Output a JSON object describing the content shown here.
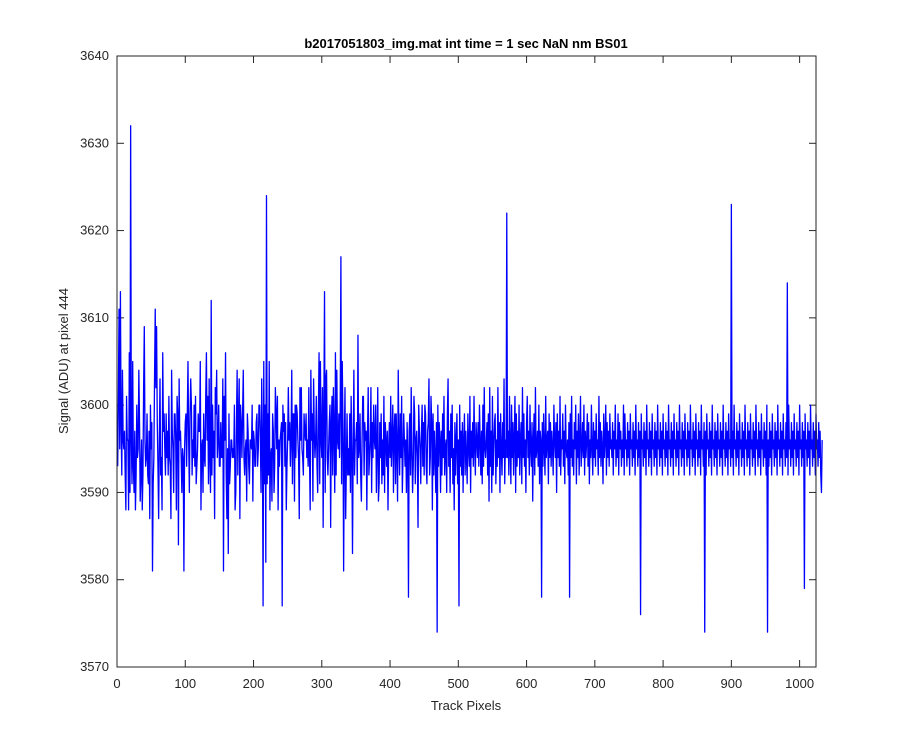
{
  "chart_data": {
    "type": "line",
    "title": "b2017051803_img.mat int time = 1 sec  NaN nm BS01",
    "xlabel": "Track Pixels",
    "ylabel": "Signal (ADU) at pixel 444",
    "xlim": [
      0,
      1024
    ],
    "ylim": [
      3570,
      3640
    ],
    "xticks": [
      0,
      100,
      200,
      300,
      400,
      500,
      600,
      700,
      800,
      900,
      1000
    ],
    "yticks": [
      3570,
      3580,
      3590,
      3600,
      3610,
      3620,
      3630,
      3640
    ],
    "grid": false,
    "box": true,
    "series": [
      {
        "color": "#0000ff",
        "x_start": 1,
        "x_step": 1,
        "values": [
          3593,
          3601,
          3611,
          3595,
          3613,
          3598,
          3592,
          3604,
          3596,
          3595,
          3597,
          3592,
          3588,
          3601,
          3596,
          3596,
          3588,
          3606,
          3590,
          3632,
          3596,
          3591,
          3605,
          3593,
          3590,
          3597,
          3588,
          3592,
          3600,
          3594,
          3595,
          3604,
          3598,
          3589,
          3592,
          3596,
          3588,
          3592,
          3602,
          3609,
          3596,
          3593,
          3594,
          3599,
          3592,
          3591,
          3597,
          3587,
          3600,
          3595,
          3598,
          3581,
          3591,
          3594,
          3603,
          3611,
          3602,
          3609,
          3598,
          3593,
          3587,
          3596,
          3603,
          3592,
          3594,
          3588,
          3606,
          3597,
          3599,
          3595,
          3592,
          3599,
          3594,
          3597,
          3592,
          3601,
          3594,
          3593,
          3587,
          3604,
          3597,
          3595,
          3590,
          3599,
          3599,
          3596,
          3588,
          3601,
          3599,
          3584,
          3603,
          3596,
          3597,
          3594,
          3590,
          3595,
          3594,
          3581,
          3595,
          3598,
          3599,
          3593,
          3599,
          3605,
          3596,
          3590,
          3599,
          3603,
          3600,
          3592,
          3596,
          3594,
          3600,
          3593,
          3601,
          3591,
          3593,
          3595,
          3599,
          3597,
          3597,
          3605,
          3588,
          3595,
          3596,
          3590,
          3599,
          3594,
          3593,
          3601,
          3606,
          3596,
          3601,
          3591,
          3603,
          3594,
          3590,
          3612,
          3592,
          3600,
          3594,
          3597,
          3587,
          3602,
          3599,
          3604,
          3594,
          3596,
          3600,
          3593,
          3593,
          3598,
          3594,
          3594,
          3603,
          3581,
          3601,
          3596,
          3606,
          3592,
          3587,
          3595,
          3583,
          3599,
          3591,
          3593,
          3596,
          3596,
          3594,
          3595,
          3594,
          3600,
          3588,
          3590,
          3598,
          3604,
          3592,
          3599,
          3603,
          3587,
          3600,
          3598,
          3594,
          3599,
          3604,
          3594,
          3592,
          3595,
          3596,
          3589,
          3599,
          3597,
          3593,
          3591,
          3596,
          3596,
          3595,
          3600,
          3589,
          3597,
          3596,
          3593,
          3593,
          3598,
          3599,
          3593,
          3595,
          3600,
          3600,
          3596,
          3590,
          3603,
          3596,
          3577,
          3605,
          3591,
          3600,
          3582,
          3624,
          3591,
          3599,
          3592,
          3605,
          3588,
          3594,
          3595,
          3589,
          3599,
          3597,
          3590,
          3593,
          3602,
          3599,
          3595,
          3601,
          3588,
          3596,
          3593,
          3596,
          3597,
          3598,
          3577,
          3600,
          3597,
          3599,
          3593,
          3598,
          3588,
          3593,
          3596,
          3602,
          3596,
          3598,
          3593,
          3596,
          3604,
          3591,
          3599,
          3599,
          3589,
          3600,
          3594,
          3600,
          3599,
          3596,
          3594,
          3587,
          3602,
          3596,
          3602,
          3595,
          3594,
          3592,
          3599,
          3597,
          3596,
          3599,
          3594,
          3596,
          3593,
          3602,
          3594,
          3588,
          3604,
          3596,
          3599,
          3589,
          3603,
          3597,
          3594,
          3596,
          3601,
          3593,
          3590,
          3599,
          3606,
          3591,
          3605,
          3596,
          3594,
          3602,
          3586,
          3599,
          3613,
          3590,
          3603,
          3604,
          3594,
          3592,
          3595,
          3598,
          3600,
          3586,
          3598,
          3601,
          3592,
          3602,
          3597,
          3590,
          3606,
          3592,
          3604,
          3596,
          3595,
          3599,
          3594,
          3600,
          3617,
          3591,
          3605,
          3598,
          3581,
          3595,
          3602,
          3587,
          3593,
          3599,
          3592,
          3595,
          3592,
          3599,
          3590,
          3601,
          3595,
          3583,
          3595,
          3604,
          3592,
          3596,
          3596,
          3598,
          3591,
          3608,
          3594,
          3595,
          3599,
          3592,
          3589,
          3596,
          3601,
          3601,
          3592,
          3598,
          3596,
          3597,
          3588,
          3597,
          3602,
          3592,
          3594,
          3596,
          3602,
          3590,
          3598,
          3594,
          3600,
          3596,
          3595,
          3600,
          3590,
          3595,
          3602,
          3589,
          3591,
          3598,
          3594,
          3599,
          3591,
          3596,
          3592,
          3601,
          3590,
          3598,
          3596,
          3593,
          3597,
          3588,
          3595,
          3598,
          3594,
          3601,
          3593,
          3596,
          3600,
          3590,
          3597,
          3599,
          3591,
          3599,
          3595,
          3589,
          3604,
          3596,
          3592,
          3599,
          3594,
          3601,
          3590,
          3594,
          3599,
          3596,
          3593,
          3596,
          3590,
          3598,
          3594,
          3578,
          3597,
          3599,
          3592,
          3602,
          3595,
          3590,
          3593,
          3601,
          3599,
          3591,
          3596,
          3597,
          3594,
          3586,
          3600,
          3597,
          3595,
          3591,
          3597,
          3600,
          3593,
          3598,
          3592,
          3600,
          3599,
          3593,
          3591,
          3597,
          3598,
          3603,
          3592,
          3594,
          3601,
          3598,
          3588,
          3599,
          3592,
          3597,
          3594,
          3590,
          3598,
          3574,
          3600,
          3593,
          3598,
          3596,
          3590,
          3597,
          3592,
          3599,
          3594,
          3601,
          3592,
          3595,
          3596,
          3590,
          3599,
          3603,
          3593,
          3597,
          3590,
          3599,
          3594,
          3600,
          3591,
          3595,
          3588,
          3598,
          3592,
          3596,
          3599,
          3591,
          3596,
          3577,
          3600,
          3593,
          3597,
          3592,
          3598,
          3590,
          3596,
          3599,
          3592,
          3597,
          3594,
          3591,
          3599,
          3595,
          3593,
          3601,
          3590,
          3597,
          3594,
          3598,
          3593,
          3601,
          3595,
          3592,
          3598,
          3596,
          3594,
          3598,
          3593,
          3600,
          3596,
          3592,
          3597,
          3591,
          3600,
          3593,
          3602,
          3595,
          3594,
          3596,
          3598,
          3592,
          3599,
          3589,
          3602,
          3593,
          3597,
          3590,
          3601,
          3592,
          3595,
          3598,
          3599,
          3591,
          3596,
          3593,
          3602,
          3594,
          3598,
          3590,
          3599,
          3595,
          3592,
          3598,
          3594,
          3603,
          3591,
          3596,
          3594,
          3622,
          3594,
          3597,
          3592,
          3601,
          3595,
          3591,
          3600,
          3594,
          3598,
          3592,
          3596,
          3601,
          3590,
          3599,
          3593,
          3597,
          3594,
          3600,
          3592,
          3596,
          3598,
          3591,
          3602,
          3594,
          3599,
          3593,
          3596,
          3590,
          3598,
          3601,
          3594,
          3597,
          3592,
          3600,
          3595,
          3593,
          3598,
          3589,
          3596,
          3599,
          3592,
          3602,
          3594,
          3595,
          3597,
          3593,
          3600,
          3591,
          3597,
          3596,
          3578,
          3598,
          3593,
          3599,
          3595,
          3592,
          3601,
          3594,
          3596,
          3597,
          3591,
          3599,
          3594,
          3598,
          3593,
          3597,
          3595,
          3592,
          3600,
          3596,
          3594,
          3598,
          3590,
          3599,
          3594,
          3597,
          3593,
          3601,
          3592,
          3596,
          3595,
          3599,
          3593,
          3597,
          3591,
          3600,
          3595,
          3594,
          3596,
          3592,
          3598,
          3578,
          3599,
          3594,
          3601,
          3593,
          3596,
          3592,
          3598,
          3595,
          3600,
          3591,
          3597,
          3594,
          3599,
          3592,
          3596,
          3601,
          3593,
          3595,
          3598,
          3594,
          3600,
          3592,
          3597,
          3594,
          3596,
          3599,
          3593,
          3598,
          3591,
          3596,
          3594,
          3600,
          3595,
          3592,
          3598,
          3594,
          3597,
          3593,
          3599,
          3595,
          3596,
          3592,
          3601,
          3594,
          3598,
          3593,
          3597,
          3595,
          3591,
          3599,
          3594,
          3596,
          3600,
          3592,
          3598,
          3594,
          3597,
          3593,
          3599,
          3595,
          3596,
          3594,
          3598,
          3592,
          3597,
          3595,
          3600,
          3593,
          3596,
          3594,
          3599,
          3592,
          3598,
          3595,
          3597,
          3593,
          3596,
          3594,
          3600,
          3592,
          3599,
          3595,
          3596,
          3593,
          3598,
          3594,
          3597,
          3592,
          3599,
          3595,
          3596,
          3593,
          3598,
          3594,
          3597,
          3592,
          3600,
          3595,
          3596,
          3593,
          3598,
          3594,
          3597,
          3576,
          3599,
          3595,
          3596,
          3593,
          3598,
          3594,
          3597,
          3592,
          3600,
          3595,
          3596,
          3593,
          3598,
          3594,
          3597,
          3592,
          3599,
          3595,
          3596,
          3593,
          3598,
          3594,
          3597,
          3592,
          3600,
          3595,
          3596,
          3593,
          3598,
          3594,
          3597,
          3592,
          3599,
          3595,
          3596,
          3593,
          3598,
          3594,
          3597,
          3592,
          3600,
          3595,
          3596,
          3593,
          3598,
          3594,
          3597,
          3592,
          3599,
          3595,
          3596,
          3593,
          3598,
          3594,
          3597,
          3592,
          3600,
          3595,
          3596,
          3593,
          3598,
          3594,
          3597,
          3592,
          3599,
          3595,
          3596,
          3593,
          3598,
          3594,
          3597,
          3592,
          3600,
          3595,
          3596,
          3593,
          3598,
          3594,
          3597,
          3592,
          3599,
          3595,
          3596,
          3593,
          3598,
          3594,
          3597,
          3592,
          3600,
          3595,
          3596,
          3593,
          3598,
          3574,
          3597,
          3592,
          3599,
          3595,
          3596,
          3593,
          3598,
          3594,
          3597,
          3592,
          3600,
          3595,
          3596,
          3593,
          3598,
          3594,
          3597,
          3592,
          3599,
          3595,
          3596,
          3593,
          3598,
          3594,
          3597,
          3592,
          3600,
          3595,
          3596,
          3593,
          3598,
          3594,
          3597,
          3592,
          3599,
          3595,
          3596,
          3593,
          3623,
          3594,
          3597,
          3592,
          3600,
          3595,
          3596,
          3593,
          3598,
          3594,
          3597,
          3592,
          3599,
          3595,
          3596,
          3593,
          3598,
          3594,
          3597,
          3592,
          3600,
          3595,
          3596,
          3593,
          3598,
          3594,
          3597,
          3592,
          3599,
          3595,
          3596,
          3593,
          3598,
          3594,
          3597,
          3592,
          3600,
          3595,
          3596,
          3593,
          3598,
          3594,
          3597,
          3592,
          3599,
          3595,
          3596,
          3593,
          3598,
          3594,
          3597,
          3592,
          3600,
          3574,
          3596,
          3593,
          3598,
          3594,
          3597,
          3592,
          3599,
          3595,
          3596,
          3593,
          3598,
          3594,
          3597,
          3592,
          3600,
          3595,
          3596,
          3593,
          3598,
          3594,
          3597,
          3592,
          3599,
          3595,
          3596,
          3593,
          3598,
          3594,
          3614,
          3592,
          3600,
          3595,
          3596,
          3593,
          3598,
          3594,
          3597,
          3592,
          3599,
          3595,
          3596,
          3593,
          3598,
          3594,
          3597,
          3592,
          3600,
          3595,
          3596,
          3593,
          3598,
          3594,
          3597,
          3579,
          3599,
          3595,
          3596,
          3593,
          3598,
          3594,
          3597,
          3592,
          3600,
          3595,
          3596,
          3593,
          3598,
          3594,
          3597,
          3592,
          3599,
          3595,
          3596,
          3593,
          3598,
          3594,
          3597,
          3592,
          3590,
          3596
        ]
      }
    ]
  }
}
